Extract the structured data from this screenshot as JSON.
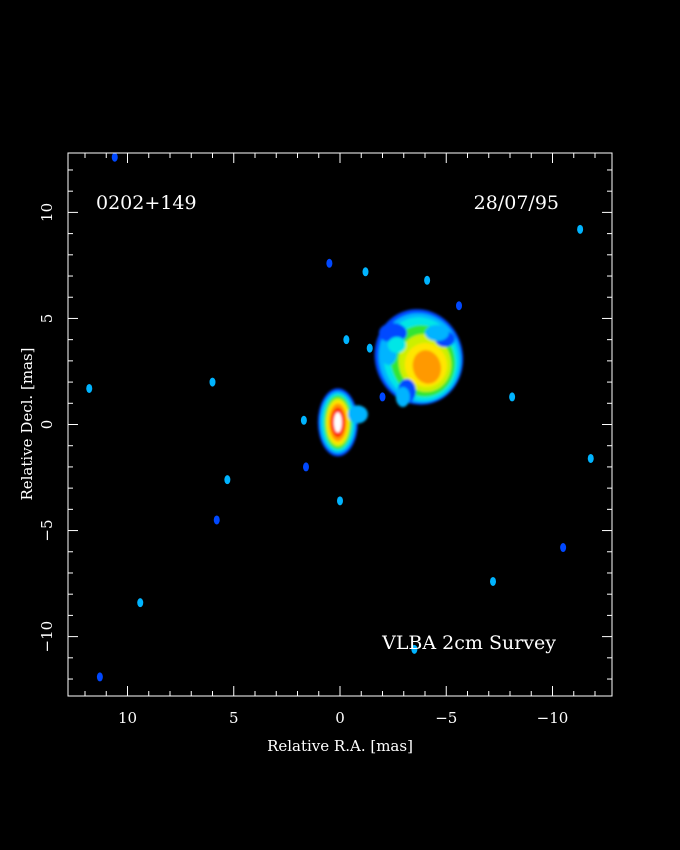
{
  "chart_data": {
    "type": "heatmap",
    "source_name": "0202+149",
    "date": "28/07/95",
    "survey": "VLBA 2cm Survey",
    "xlabel": "Relative R.A. [mas]",
    "ylabel": "Relative Decl. [mas]",
    "xlim": [
      12.8,
      -12.8
    ],
    "ylim": [
      -12.8,
      12.8
    ],
    "x_ticks": [
      10,
      5,
      0,
      -5,
      -10
    ],
    "y_ticks": [
      10,
      5,
      0,
      -5,
      -10
    ],
    "x_tick_labels": [
      "10",
      "5",
      "0",
      "−5",
      "−10"
    ],
    "y_tick_labels": [
      "10",
      "5",
      "0",
      "−5",
      "−10"
    ],
    "grid": false,
    "colormap": [
      "#0048ff",
      "#00b4ff",
      "#00e6e6",
      "#33e633",
      "#ccf000",
      "#ffe600",
      "#ff9900",
      "#ff3300",
      "#ffffff"
    ],
    "components": [
      {
        "label": "core",
        "x": 0.1,
        "y": 0.1,
        "peak_level": 1.0
      },
      {
        "label": "jet",
        "x": -3.9,
        "y": 2.9,
        "peak_level": 0.78
      }
    ],
    "noise_spots": [
      {
        "x": 0.5,
        "y": 7.6
      },
      {
        "x": -1.2,
        "y": 7.2
      },
      {
        "x": -4.1,
        "y": 6.8
      },
      {
        "x": -5.6,
        "y": 5.6
      },
      {
        "x": -0.3,
        "y": 4.0
      },
      {
        "x": -1.4,
        "y": 3.6
      },
      {
        "x": -2.0,
        "y": 1.3
      },
      {
        "x": -8.1,
        "y": 1.3
      },
      {
        "x": 1.7,
        "y": 0.2
      },
      {
        "x": 1.6,
        "y": -2.0
      },
      {
        "x": 0.0,
        "y": -3.6
      },
      {
        "x": 6.0,
        "y": 2.0
      },
      {
        "x": 5.8,
        "y": -4.5
      },
      {
        "x": 5.3,
        "y": -2.6
      },
      {
        "x": 11.8,
        "y": 1.7
      },
      {
        "x": 10.6,
        "y": 12.6
      },
      {
        "x": -11.3,
        "y": 9.2
      },
      {
        "x": -11.8,
        "y": -1.6
      },
      {
        "x": -10.5,
        "y": -5.8
      },
      {
        "x": -7.2,
        "y": -7.4
      },
      {
        "x": 9.4,
        "y": -8.4
      },
      {
        "x": 11.3,
        "y": -11.9
      },
      {
        "x": -3.5,
        "y": -10.6
      }
    ]
  }
}
